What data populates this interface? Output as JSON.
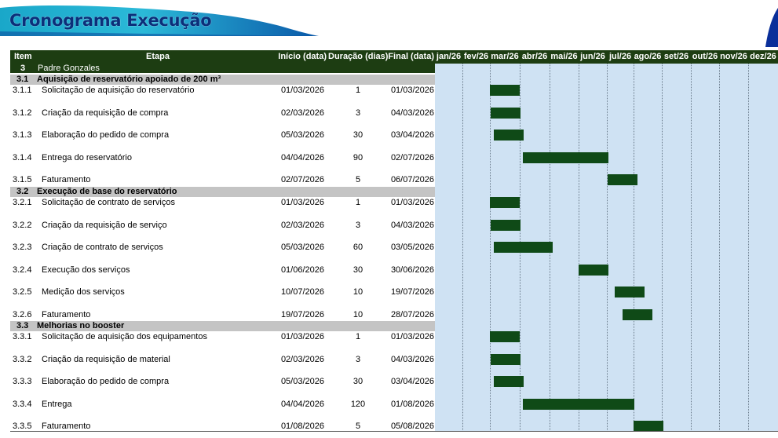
{
  "page_title": "Cronograma Execução",
  "colors": {
    "header_bg": "#1d3d12",
    "section_bg": "#c4c4c4",
    "gantt_bg": "#cfe2f3",
    "bar": "#0f4a17",
    "title": "#0b2f7a"
  },
  "header": {
    "item": "Item",
    "etapa": "Etapa",
    "inicio": "Início (data)",
    "duracao": "Duração (dias)",
    "final": "Final (data)"
  },
  "months": [
    "jan/26",
    "fev/26",
    "mar/26",
    "abr/26",
    "mai/26",
    "jun/26",
    "jul/26",
    "ago/26",
    "set/26",
    "out/26",
    "nov/26",
    "dez/26"
  ],
  "project": {
    "item": "3",
    "name": "Padre Gonzales"
  },
  "sections": [
    {
      "item": "3.1",
      "name": "Aquisição de reservatório apoiado de 200 m³",
      "tasks": [
        {
          "item": "3.1.1",
          "name": "Solicitação de aquisição do reservatório",
          "start": "01/03/2026",
          "duration": "1",
          "end": "01/03/2026",
          "start_day": 59,
          "end_day": 60
        },
        {
          "item": "3.1.2",
          "name": "Criação da requisição de compra",
          "start": "02/03/2026",
          "duration": "3",
          "end": "04/03/2026",
          "start_day": 60,
          "end_day": 63
        },
        {
          "item": "3.1.3",
          "name": "Elaboração do pedido de compra",
          "start": "05/03/2026",
          "duration": "30",
          "end": "03/04/2026",
          "start_day": 63,
          "end_day": 93
        },
        {
          "item": "3.1.4",
          "name": "Entrega do reservatório",
          "start": "04/04/2026",
          "duration": "90",
          "end": "02/07/2026",
          "start_day": 93,
          "end_day": 183
        },
        {
          "item": "3.1.5",
          "name": "Faturamento",
          "start": "02/07/2026",
          "duration": "5",
          "end": "06/07/2026",
          "start_day": 182,
          "end_day": 187
        }
      ]
    },
    {
      "item": "3.2",
      "name": "Execução de base do reservatório",
      "tasks": [
        {
          "item": "3.2.1",
          "name": "Solicitação de contrato de serviços",
          "start": "01/03/2026",
          "duration": "1",
          "end": "01/03/2026",
          "start_day": 59,
          "end_day": 60
        },
        {
          "item": "3.2.2",
          "name": "Criação da requisição de serviço",
          "start": "02/03/2026",
          "duration": "3",
          "end": "04/03/2026",
          "start_day": 60,
          "end_day": 63
        },
        {
          "item": "3.2.3",
          "name": "Criação de contrato de serviços",
          "start": "05/03/2026",
          "duration": "60",
          "end": "03/05/2026",
          "start_day": 63,
          "end_day": 123
        },
        {
          "item": "3.2.4",
          "name": "Execução dos serviços",
          "start": "01/06/2026",
          "duration": "30",
          "end": "30/06/2026",
          "start_day": 151,
          "end_day": 181
        },
        {
          "item": "3.2.5",
          "name": "Medição dos serviços",
          "start": "10/07/2026",
          "duration": "10",
          "end": "19/07/2026",
          "start_day": 190,
          "end_day": 200
        },
        {
          "item": "3.2.6",
          "name": "Faturamento",
          "start": "19/07/2026",
          "duration": "10",
          "end": "28/07/2026",
          "start_day": 199,
          "end_day": 209
        }
      ]
    },
    {
      "item": "3.3",
      "name": "Melhorias no booster",
      "tasks": [
        {
          "item": "3.3.1",
          "name": "Solicitação de aquisição dos equipamentos",
          "start": "01/03/2026",
          "duration": "1",
          "end": "01/03/2026",
          "start_day": 59,
          "end_day": 60
        },
        {
          "item": "3.3.2",
          "name": "Criação da requisição de material",
          "start": "02/03/2026",
          "duration": "3",
          "end": "04/03/2026",
          "start_day": 60,
          "end_day": 63
        },
        {
          "item": "3.3.3",
          "name": "Elaboração do pedido de compra",
          "start": "05/03/2026",
          "duration": "30",
          "end": "03/04/2026",
          "start_day": 63,
          "end_day": 93
        },
        {
          "item": "3.3.4",
          "name": "Entrega",
          "start": "04/04/2026",
          "duration": "120",
          "end": "01/08/2026",
          "start_day": 93,
          "end_day": 213
        },
        {
          "item": "3.3.5",
          "name": "Faturamento",
          "start": "01/08/2026",
          "duration": "5",
          "end": "05/08/2026",
          "start_day": 212,
          "end_day": 217
        }
      ]
    }
  ]
}
